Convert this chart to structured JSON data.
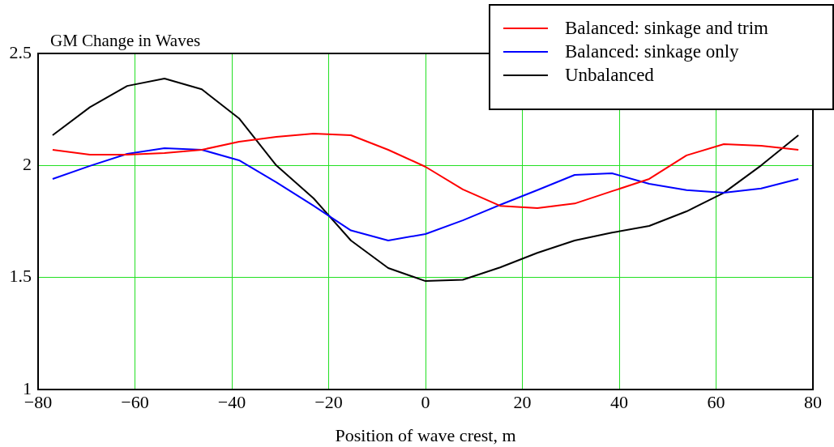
{
  "chart_data": {
    "type": "line",
    "title": "GM Change in Waves",
    "xlabel": "Position of wave crest, m",
    "x": [
      -77,
      -69.3,
      -61.6,
      -53.9,
      -46.2,
      -38.5,
      -30.8,
      -23.1,
      -15.4,
      -7.7,
      0,
      7.7,
      15.4,
      23.1,
      30.8,
      38.5,
      46.2,
      53.9,
      61.6,
      69.3,
      77
    ],
    "series": [
      {
        "name": "Balanced: sinkage and trim",
        "color": "#ff0000",
        "values": [
          2.07,
          2.048,
          2.048,
          2.055,
          2.07,
          2.106,
          2.128,
          2.142,
          2.135,
          2.07,
          1.994,
          1.893,
          1.82,
          1.81,
          1.83,
          1.885,
          1.94,
          2.045,
          2.095,
          2.088,
          2.07
        ]
      },
      {
        "name": "Balanced: sinkage only",
        "color": "#0000ff",
        "values": [
          1.94,
          1.998,
          2.052,
          2.077,
          2.07,
          2.023,
          1.925,
          1.82,
          1.71,
          1.665,
          1.694,
          1.755,
          1.824,
          1.89,
          1.958,
          1.965,
          1.918,
          1.89,
          1.878,
          1.897,
          1.94
        ]
      },
      {
        "name": "Unbalanced",
        "color": "#000000",
        "values": [
          2.135,
          2.26,
          2.355,
          2.388,
          2.34,
          2.21,
          2.0,
          1.853,
          1.665,
          1.542,
          1.484,
          1.49,
          1.545,
          1.61,
          1.665,
          1.7,
          1.73,
          1.795,
          1.878,
          2.0,
          2.135
        ]
      }
    ],
    "xlim": [
      -80,
      80
    ],
    "xticks": [
      {
        "value": -80,
        "label": "−80"
      },
      {
        "value": -60,
        "label": "−60"
      },
      {
        "value": -40,
        "label": "−40"
      },
      {
        "value": -20,
        "label": "−20"
      },
      0,
      20,
      40,
      60,
      80
    ],
    "ylim": [
      1,
      2.5
    ],
    "yticks": [
      1,
      1.5,
      2,
      2.5
    ],
    "grid": true,
    "legend": "top right",
    "marker": "none",
    "line_style": "solid"
  }
}
